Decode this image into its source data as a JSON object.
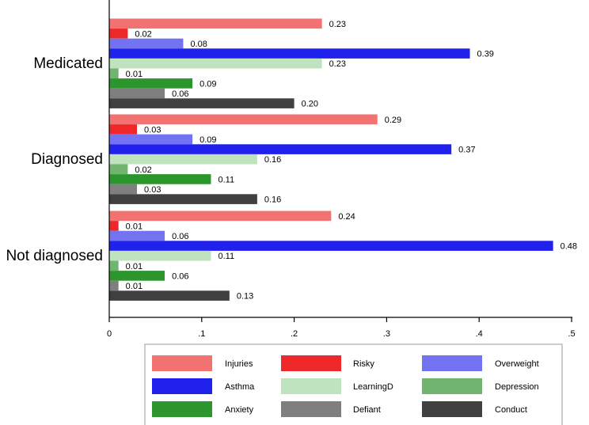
{
  "chart_data": {
    "type": "bar",
    "orientation": "horizontal",
    "categories": [
      "Medicated",
      "Diagnosed",
      "Not diagnosed"
    ],
    "series": [
      {
        "name": "Injuries",
        "color": "#f27171",
        "values": [
          0.23,
          0.29,
          0.24
        ]
      },
      {
        "name": "Risky",
        "color": "#ee2828",
        "values": [
          0.02,
          0.03,
          0.01
        ]
      },
      {
        "name": "Overweight",
        "color": "#7373f2",
        "values": [
          0.08,
          0.09,
          0.06
        ]
      },
      {
        "name": "Asthma",
        "color": "#2121ee",
        "values": [
          0.39,
          0.37,
          0.48
        ]
      },
      {
        "name": "LearningD",
        "color": "#bfe2bf",
        "values": [
          0.23,
          0.16,
          0.11
        ]
      },
      {
        "name": "Depression",
        "color": "#6fb46f",
        "values": [
          0.01,
          0.02,
          0.01
        ]
      },
      {
        "name": "Anxiety",
        "color": "#2c962c",
        "values": [
          0.09,
          0.11,
          0.06
        ]
      },
      {
        "name": "Defiant",
        "color": "#7f7f7f",
        "values": [
          0.06,
          0.03,
          0.01
        ]
      },
      {
        "name": "Conduct",
        "color": "#404040",
        "values": [
          0.2,
          0.16,
          0.13
        ]
      }
    ],
    "value_labels": [
      [
        "0.23",
        "0.02",
        "0.08",
        "0.39",
        "0.23",
        "0.01",
        "0.09",
        "0.06",
        "0.20"
      ],
      [
        "0.29",
        "0.03",
        "0.09",
        "0.37",
        "0.16",
        "0.02",
        "0.11",
        "0.03",
        "0.16"
      ],
      [
        "0.24",
        "0.01",
        "0.06",
        "0.48",
        "0.11",
        "0.01",
        "0.06",
        "0.01",
        "0.13"
      ]
    ],
    "xlim": [
      0,
      0.5
    ],
    "x_ticks": [
      0,
      0.1,
      0.2,
      0.3,
      0.4,
      0.5
    ],
    "x_tick_labels": [
      "0",
      ".1",
      ".2",
      ".3",
      ".4",
      ".5"
    ],
    "title": "",
    "xlabel": "",
    "ylabel": "",
    "grid": false,
    "legend_position": "bottom"
  }
}
